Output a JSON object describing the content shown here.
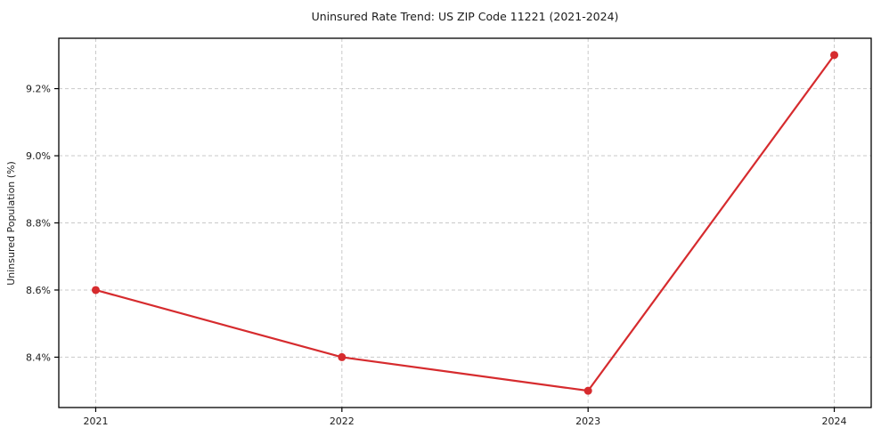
{
  "chart_data": {
    "type": "line",
    "title": "Uninsured Rate Trend: US ZIP Code 11221 (2021-2024)",
    "xlabel": "",
    "ylabel": "Uninsured Population (%)",
    "x": [
      2021,
      2022,
      2023,
      2024
    ],
    "values": [
      8.6,
      8.4,
      8.3,
      9.3
    ],
    "xticks": [
      2021,
      2022,
      2023,
      2024
    ],
    "xtick_labels": [
      "2021",
      "2022",
      "2023",
      "2024"
    ],
    "yticks": [
      8.4,
      8.6,
      8.8,
      9.0,
      9.2
    ],
    "ytick_labels": [
      "8.4%",
      "8.6%",
      "8.8%",
      "9.0%",
      "9.2%"
    ],
    "xlim": [
      2020.85,
      2024.15
    ],
    "ylim": [
      8.25,
      9.35
    ],
    "grid": true,
    "grid_style": "dashed",
    "legend": false,
    "marker": "circle",
    "colors": {
      "line": "#d62b2e",
      "marker": "#d62b2e",
      "grid": "#c9c9c9",
      "axis": "#000000",
      "text": "#1a1a1a",
      "background": "#ffffff"
    }
  }
}
